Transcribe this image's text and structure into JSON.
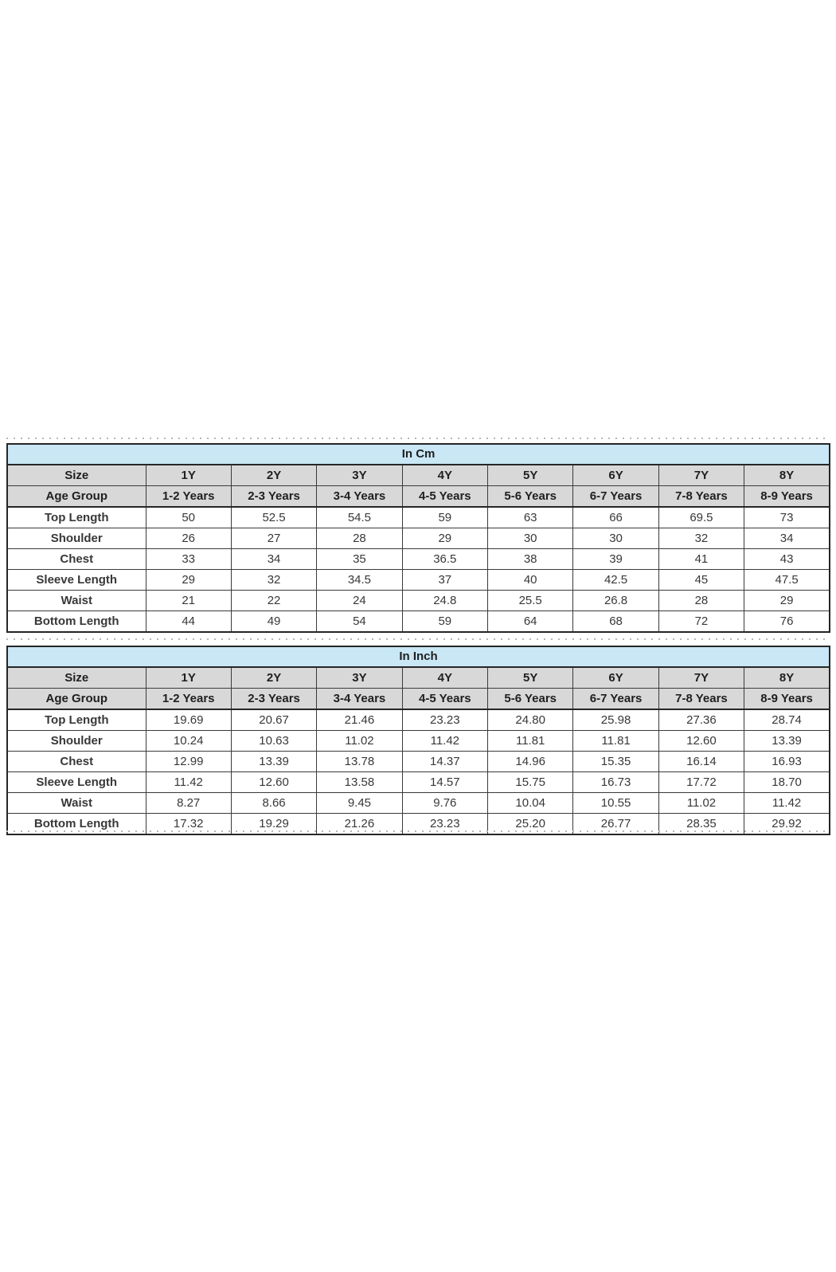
{
  "colors": {
    "title_bg": "#c9e7f5",
    "header_bg": "#d8d8d8",
    "border_dark": "#262626",
    "border_mid": "#3a3a3a",
    "text_head": "#1f1f1f",
    "text_data": "#383838",
    "page_bg": "#ffffff",
    "dashed_line": "#b7b7b7"
  },
  "chart_data": [
    {
      "type": "table",
      "title": "In Cm",
      "corner_labels": {
        "size": "Size",
        "age_group": "Age Group"
      },
      "columns": [
        "1Y",
        "2Y",
        "3Y",
        "4Y",
        "5Y",
        "6Y",
        "7Y",
        "8Y"
      ],
      "age_groups": [
        "1-2 Years",
        "2-3 Years",
        "3-4 Years",
        "4-5 Years",
        "5-6 Years",
        "6-7 Years",
        "7-8 Years",
        "8-9 Years"
      ],
      "rows": [
        {
          "label": "Top Length",
          "values": [
            "50",
            "52.5",
            "54.5",
            "59",
            "63",
            "66",
            "69.5",
            "73"
          ]
        },
        {
          "label": "Shoulder",
          "values": [
            "26",
            "27",
            "28",
            "29",
            "30",
            "30",
            "32",
            "34"
          ]
        },
        {
          "label": "Chest",
          "values": [
            "33",
            "34",
            "35",
            "36.5",
            "38",
            "39",
            "41",
            "43"
          ]
        },
        {
          "label": "Sleeve Length",
          "values": [
            "29",
            "32",
            "34.5",
            "37",
            "40",
            "42.5",
            "45",
            "47.5"
          ]
        },
        {
          "label": "Waist",
          "values": [
            "21",
            "22",
            "24",
            "24.8",
            "25.5",
            "26.8",
            "28",
            "29"
          ]
        },
        {
          "label": "Bottom Length",
          "values": [
            "44",
            "49",
            "54",
            "59",
            "64",
            "68",
            "72",
            "76"
          ]
        }
      ]
    },
    {
      "type": "table",
      "title": "In Inch",
      "corner_labels": {
        "size": "Size",
        "age_group": "Age Group"
      },
      "columns": [
        "1Y",
        "2Y",
        "3Y",
        "4Y",
        "5Y",
        "6Y",
        "7Y",
        "8Y"
      ],
      "age_groups": [
        "1-2 Years",
        "2-3 Years",
        "3-4 Years",
        "4-5 Years",
        "5-6 Years",
        "6-7 Years",
        "7-8 Years",
        "8-9 Years"
      ],
      "rows": [
        {
          "label": "Top Length",
          "values": [
            "19.69",
            "20.67",
            "21.46",
            "23.23",
            "24.80",
            "25.98",
            "27.36",
            "28.74"
          ]
        },
        {
          "label": "Shoulder",
          "values": [
            "10.24",
            "10.63",
            "11.02",
            "11.42",
            "11.81",
            "11.81",
            "12.60",
            "13.39"
          ]
        },
        {
          "label": "Chest",
          "values": [
            "12.99",
            "13.39",
            "13.78",
            "14.37",
            "14.96",
            "15.35",
            "16.14",
            "16.93"
          ]
        },
        {
          "label": "Sleeve Length",
          "values": [
            "11.42",
            "12.60",
            "13.58",
            "14.57",
            "15.75",
            "16.73",
            "17.72",
            "18.70"
          ]
        },
        {
          "label": "Waist",
          "values": [
            "8.27",
            "8.66",
            "9.45",
            "9.76",
            "10.04",
            "10.55",
            "11.02",
            "11.42"
          ]
        },
        {
          "label": "Bottom Length",
          "values": [
            "17.32",
            "19.29",
            "21.26",
            "23.23",
            "25.20",
            "26.77",
            "28.35",
            "29.92"
          ]
        }
      ]
    }
  ]
}
